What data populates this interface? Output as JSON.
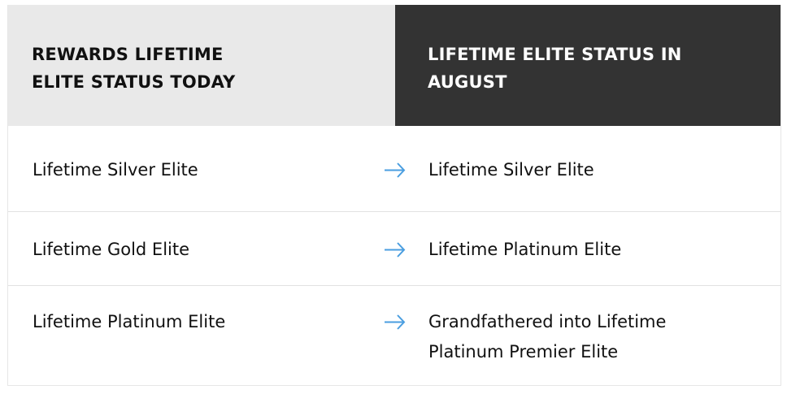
{
  "header": {
    "left": "REWARDS LIFETIME ELITE STATUS TODAY",
    "right": "LIFETIME ELITE STATUS IN AUGUST"
  },
  "rows": [
    {
      "today": "Lifetime Silver Elite",
      "august": "Lifetime Silver Elite"
    },
    {
      "today": "Lifetime Gold Elite",
      "august": "Lifetime Platinum Elite"
    },
    {
      "today": "Lifetime Platinum Elite",
      "august": "Grandfathered into Lifetime Platinum Premier Elite"
    }
  ],
  "colors": {
    "arrow": "#4a9ee0",
    "header_left_bg": "#e9e9e9",
    "header_right_bg": "#333333"
  },
  "icons": {
    "arrow": "arrow-right-icon"
  }
}
